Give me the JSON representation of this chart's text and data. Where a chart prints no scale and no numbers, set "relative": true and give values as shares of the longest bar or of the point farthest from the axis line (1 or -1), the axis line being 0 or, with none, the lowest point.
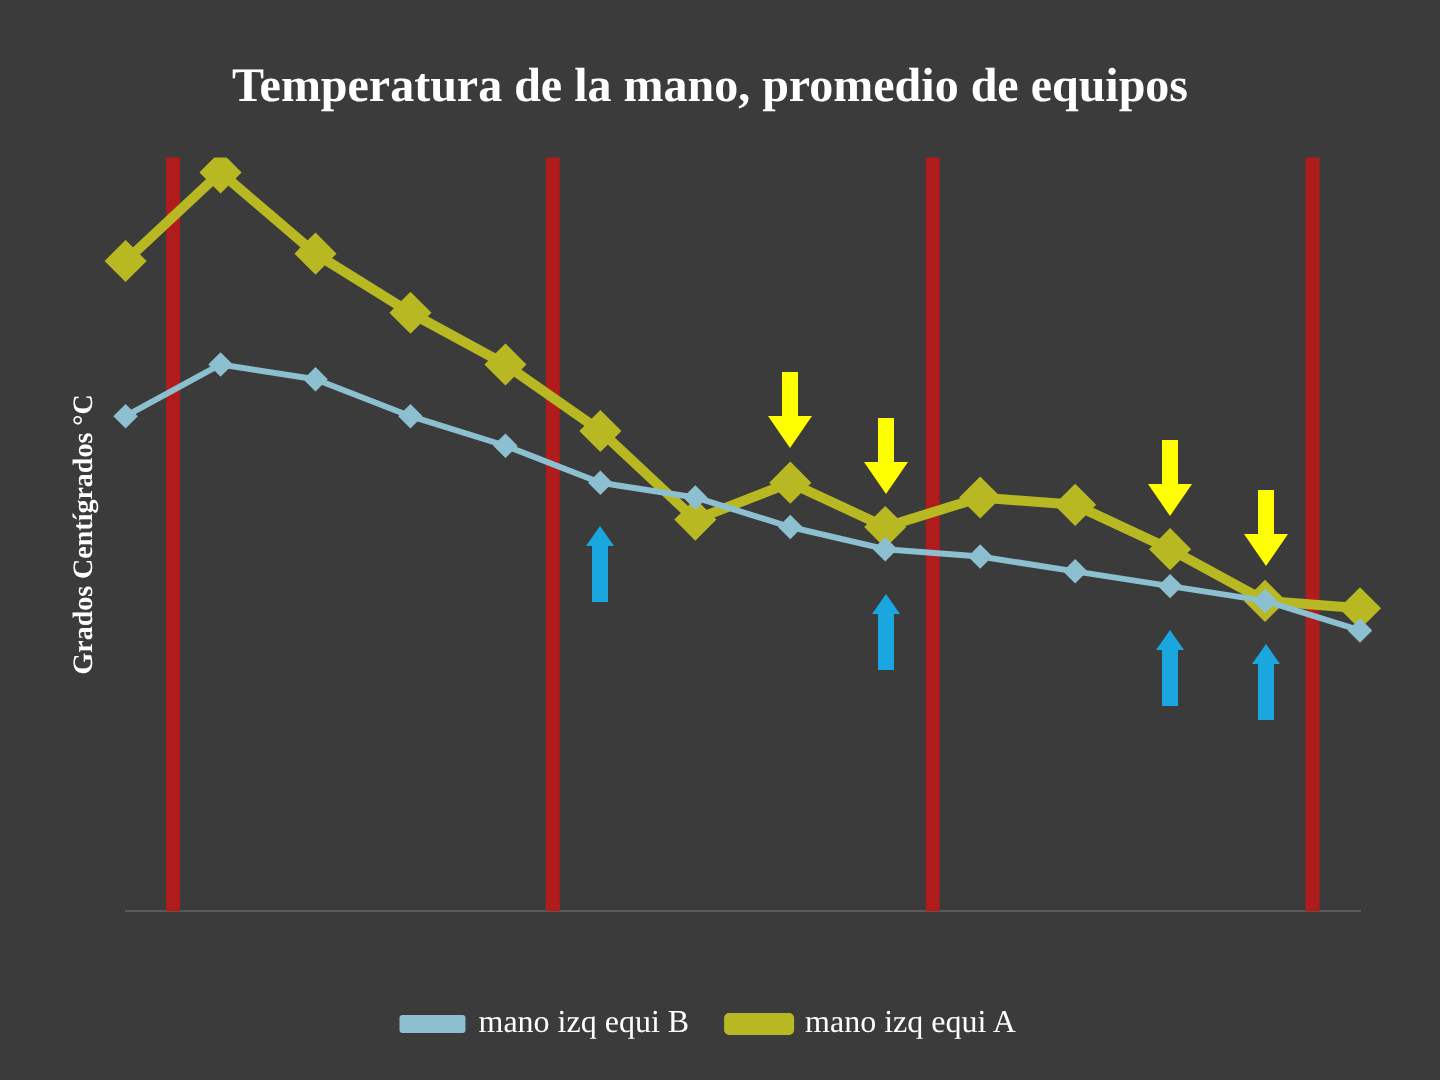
{
  "chart_data": {
    "type": "line",
    "title": "Temperatura de la mano, promedio de equipos",
    "ylabel": "Grados Centígrados °C",
    "categories": [
      null,
      null,
      null,
      null,
      null,
      null,
      null,
      null,
      null,
      null,
      null,
      null,
      null,
      null
    ],
    "relative": true,
    "marker": "diamond",
    "legend": "bottom",
    "series": [
      {
        "name": "mano izq equi A",
        "color": "#b8b822",
        "values": [
          0.88,
          1,
          0.89,
          0.81,
          0.74,
          0.65,
          0.53,
          0.58,
          0.52,
          0.56,
          0.55,
          0.49,
          0.42,
          0.41
        ]
      },
      {
        "name": "mano izq equi B",
        "color": "#8cc0d0",
        "values": [
          0.67,
          0.74,
          0.72,
          0.67,
          0.63,
          0.58,
          0.56,
          0.52,
          0.49,
          0.48,
          0.46,
          0.44,
          0.42,
          0.38
        ]
      }
    ]
  }
}
